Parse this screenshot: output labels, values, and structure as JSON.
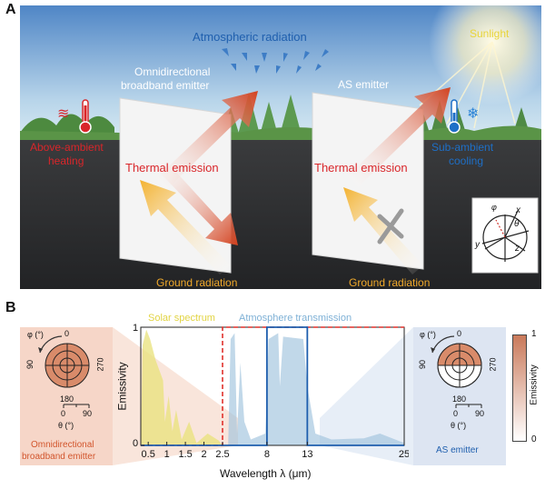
{
  "panel_a": {
    "letter": "A",
    "sky_top": "#4f86c6",
    "sky_bottom": "#cfe3ef",
    "ground": "#2e2f31",
    "atmospheric_radiation": "Atmospheric radiation",
    "sunlight": "Sunlight",
    "left": {
      "emitter_label_line1": "Omnidirectional",
      "emitter_label_line2": "broadband emitter",
      "thermal_emission": "Thermal emission",
      "ground_radiation": "Ground radiation",
      "effect_line1": "Above-ambient",
      "effect_line2": "heating",
      "effect_icon": "thermometer-hot-icon",
      "effect_color": "#d9262a"
    },
    "right": {
      "emitter_label": "AS emitter",
      "thermal_emission": "Thermal emission",
      "ground_radiation": "Ground radiation",
      "effect_line1": "Sub-ambient",
      "effect_line2": "cooling",
      "effect_icon": "thermometer-cold-icon",
      "effect_color": "#1e6fc7"
    },
    "coords": {
      "phi": "φ",
      "theta": "θ",
      "x": "x",
      "y": "y",
      "z": "z"
    }
  },
  "panel_b": {
    "letter": "B",
    "solar_label": "Solar spectrum",
    "atmosphere_label": "Atmosphere transmission",
    "solar_color": "#e8e27a",
    "atmosphere_color": "#9fc3dd",
    "y_axis_label": "Emissivity",
    "x_axis_label": "Wavelength λ (μm)",
    "y_ticks": [
      "0",
      "1"
    ],
    "x_ticks": [
      "0.5",
      "1",
      "1.5",
      "2",
      "2.5",
      "8",
      "13",
      "25"
    ],
    "left_polar": {
      "phi_label": "φ (°)",
      "theta_label": "θ (°)",
      "angle_top": "0",
      "angle_left": "90",
      "angle_right": "270",
      "angle_bottom": "180",
      "theta_ticks": [
        "0",
        "90"
      ],
      "caption_line1": "Omnidirectional",
      "caption_line2": "broadband emitter",
      "caption_color": "#d2552c"
    },
    "right_polar": {
      "phi_label": "φ (°)",
      "theta_label": "θ (°)",
      "angle_top": "0",
      "angle_left": "90",
      "angle_right": "270",
      "angle_bottom": "180",
      "theta_ticks": [
        "0",
        "90"
      ],
      "caption": "AS emitter",
      "caption_color": "#1f5fae"
    },
    "colorbar": {
      "label": "Emissivity",
      "max": "1",
      "min": "0",
      "color_high": "#c9795a",
      "color_low": "#ffffff"
    },
    "broadband_line_color": "#e0302b",
    "as_line_color": "#1f5fae"
  }
}
